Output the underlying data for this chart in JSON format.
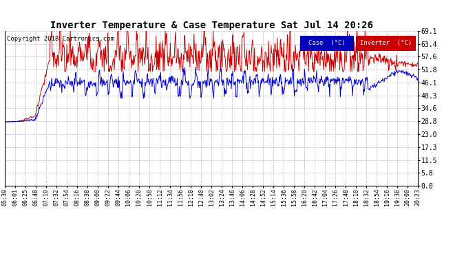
{
  "title": "Inverter Temperature & Case Temperature Sat Jul 14 20:26",
  "copyright": "Copyright 2018 Cartronics.com",
  "background_color": "#ffffff",
  "plot_bg_color": "#ffffff",
  "grid_color": "#bbbbbb",
  "yticks": [
    0.0,
    5.8,
    11.5,
    17.3,
    23.0,
    28.8,
    34.6,
    40.3,
    46.1,
    51.8,
    57.6,
    63.4,
    69.1
  ],
  "ylim": [
    0.0,
    69.1
  ],
  "case_color": "#0000cc",
  "inverter_color": "#cc0000",
  "legend_case_bg": "#0000bb",
  "legend_inverter_bg": "#cc0000",
  "xtick_labels": [
    "05:39",
    "06:01",
    "06:25",
    "06:48",
    "07:10",
    "07:32",
    "07:54",
    "08:16",
    "08:38",
    "09:00",
    "09:22",
    "09:44",
    "10:06",
    "10:28",
    "10:50",
    "11:12",
    "11:34",
    "11:56",
    "12:18",
    "12:40",
    "13:02",
    "13:24",
    "13:46",
    "14:06",
    "14:28",
    "14:52",
    "15:14",
    "15:36",
    "15:58",
    "16:20",
    "16:42",
    "17:04",
    "17:26",
    "17:48",
    "18:10",
    "18:32",
    "18:54",
    "19:16",
    "19:38",
    "20:00",
    "20:23"
  ]
}
